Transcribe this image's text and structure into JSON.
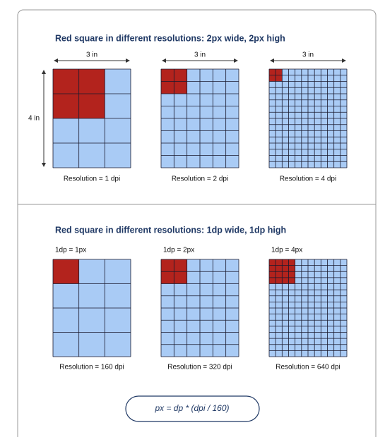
{
  "top": {
    "title": "Red square in different resolutions: 2px wide, 2px high",
    "height_label": "4 in",
    "panels": [
      {
        "width_label": "3 in",
        "caption": "Resolution = 1 dpi"
      },
      {
        "width_label": "3 in",
        "caption": "Resolution = 2 dpi"
      },
      {
        "width_label": "3 in",
        "caption": "Resolution = 4 dpi"
      }
    ]
  },
  "bottom": {
    "title": "Red square in different resolutions: 1dp wide, 1dp high",
    "panels": [
      {
        "scale": "1dp = 1px",
        "caption": "Resolution = 160 dpi"
      },
      {
        "scale": "1dp = 2px",
        "caption": "Resolution = 320 dpi"
      },
      {
        "scale": "1dp = 4px",
        "caption": "Resolution = 640 dpi"
      }
    ]
  },
  "formula": "px = dp * (dpi / 160)"
}
